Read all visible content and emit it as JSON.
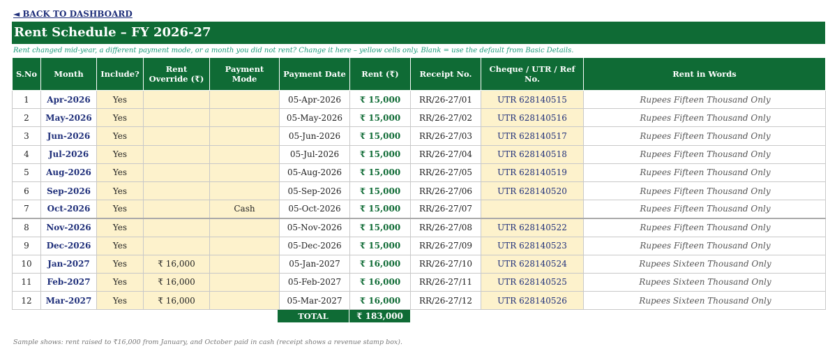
{
  "nav": {
    "back_label": "◄ BACK TO DASHBOARD"
  },
  "title": "Rent Schedule – FY 2026-27",
  "note": "Rent changed mid-year, a different payment mode, or a month you did not rent? Change it here – yellow cells only. Blank = use the default from Basic Details.",
  "columns": [
    "S.No",
    "Month",
    "Include?",
    "Rent Override (₹)",
    "Payment Mode",
    "Payment Date",
    "Rent (₹)",
    "Receipt No.",
    "Cheque / UTR / Ref No.",
    "Rent in Words"
  ],
  "rows": [
    {
      "sno": "1",
      "month": "Apr-2026",
      "include": "Yes",
      "override": "",
      "mode": "",
      "date": "05-Apr-2026",
      "rent": "₹ 15,000",
      "receipt": "RR/26-27/01",
      "ref": "UTR 628140515",
      "words": "Rupees Fifteen Thousand Only"
    },
    {
      "sno": "2",
      "month": "May-2026",
      "include": "Yes",
      "override": "",
      "mode": "",
      "date": "05-May-2026",
      "rent": "₹ 15,000",
      "receipt": "RR/26-27/02",
      "ref": "UTR 628140516",
      "words": "Rupees Fifteen Thousand Only"
    },
    {
      "sno": "3",
      "month": "Jun-2026",
      "include": "Yes",
      "override": "",
      "mode": "",
      "date": "05-Jun-2026",
      "rent": "₹ 15,000",
      "receipt": "RR/26-27/03",
      "ref": "UTR 628140517",
      "words": "Rupees Fifteen Thousand Only"
    },
    {
      "sno": "4",
      "month": "Jul-2026",
      "include": "Yes",
      "override": "",
      "mode": "",
      "date": "05-Jul-2026",
      "rent": "₹ 15,000",
      "receipt": "RR/26-27/04",
      "ref": "UTR 628140518",
      "words": "Rupees Fifteen Thousand Only"
    },
    {
      "sno": "5",
      "month": "Aug-2026",
      "include": "Yes",
      "override": "",
      "mode": "",
      "date": "05-Aug-2026",
      "rent": "₹ 15,000",
      "receipt": "RR/26-27/05",
      "ref": "UTR 628140519",
      "words": "Rupees Fifteen Thousand Only"
    },
    {
      "sno": "6",
      "month": "Sep-2026",
      "include": "Yes",
      "override": "",
      "mode": "",
      "date": "05-Sep-2026",
      "rent": "₹ 15,000",
      "receipt": "RR/26-27/06",
      "ref": "UTR 628140520",
      "words": "Rupees Fifteen Thousand Only"
    },
    {
      "sno": "7",
      "month": "Oct-2026",
      "include": "Yes",
      "override": "",
      "mode": "Cash",
      "date": "05-Oct-2026",
      "rent": "₹ 15,000",
      "receipt": "RR/26-27/07",
      "ref": "",
      "words": "Rupees Fifteen Thousand Only"
    },
    {
      "sno": "8",
      "month": "Nov-2026",
      "include": "Yes",
      "override": "",
      "mode": "",
      "date": "05-Nov-2026",
      "rent": "₹ 15,000",
      "receipt": "RR/26-27/08",
      "ref": "UTR 628140522",
      "words": "Rupees Fifteen Thousand Only"
    },
    {
      "sno": "9",
      "month": "Dec-2026",
      "include": "Yes",
      "override": "",
      "mode": "",
      "date": "05-Dec-2026",
      "rent": "₹ 15,000",
      "receipt": "RR/26-27/09",
      "ref": "UTR 628140523",
      "words": "Rupees Fifteen Thousand Only"
    },
    {
      "sno": "10",
      "month": "Jan-2027",
      "include": "Yes",
      "override": "₹ 16,000",
      "mode": "",
      "date": "05-Jan-2027",
      "rent": "₹ 16,000",
      "receipt": "RR/26-27/10",
      "ref": "UTR 628140524",
      "words": "Rupees Sixteen Thousand Only"
    },
    {
      "sno": "11",
      "month": "Feb-2027",
      "include": "Yes",
      "override": "₹ 16,000",
      "mode": "",
      "date": "05-Feb-2027",
      "rent": "₹ 16,000",
      "receipt": "RR/26-27/11",
      "ref": "UTR 628140525",
      "words": "Rupees Sixteen Thousand Only"
    },
    {
      "sno": "12",
      "month": "Mar-2027",
      "include": "Yes",
      "override": "₹ 16,000",
      "mode": "",
      "date": "05-Mar-2027",
      "rent": "₹ 16,000",
      "receipt": "RR/26-27/12",
      "ref": "UTR 628140526",
      "words": "Rupees Sixteen Thousand Only"
    }
  ],
  "total": {
    "label": "TOTAL",
    "value": "₹ 183,000"
  },
  "footnote": "Sample shows: rent raised to ₹16,000 from January, and October paid in cash (receipt shows a revenue stamp box).",
  "colors": {
    "header_green": "#0f6b35",
    "input_yellow": "#fdf2cc",
    "month_navy": "#1f2f7a",
    "note_teal": "#1a9a7a"
  }
}
